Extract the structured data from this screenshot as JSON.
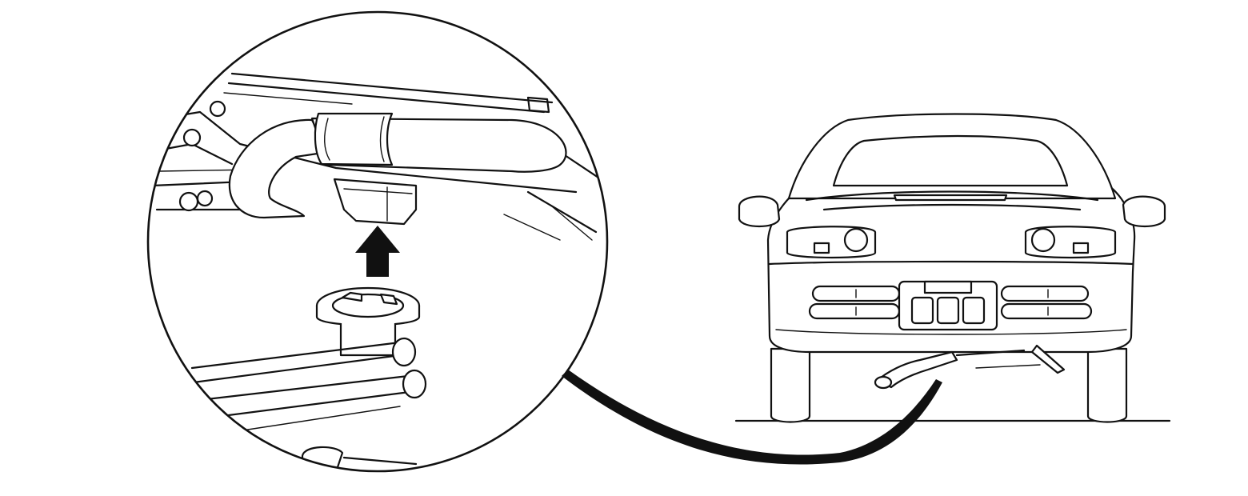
{
  "illustration": {
    "subject": "",
    "views": [
      {
        "id": "detail-view",
        "shape": "circle"
      },
      {
        "id": "car-rear-view",
        "shape": "vehicle"
      }
    ],
    "leader": {
      "from": "detail-view",
      "to": "car-rear-view"
    },
    "arrow": {
      "direction": "up"
    },
    "colors": {
      "line": "#111111",
      "background": "#ffffff"
    }
  }
}
